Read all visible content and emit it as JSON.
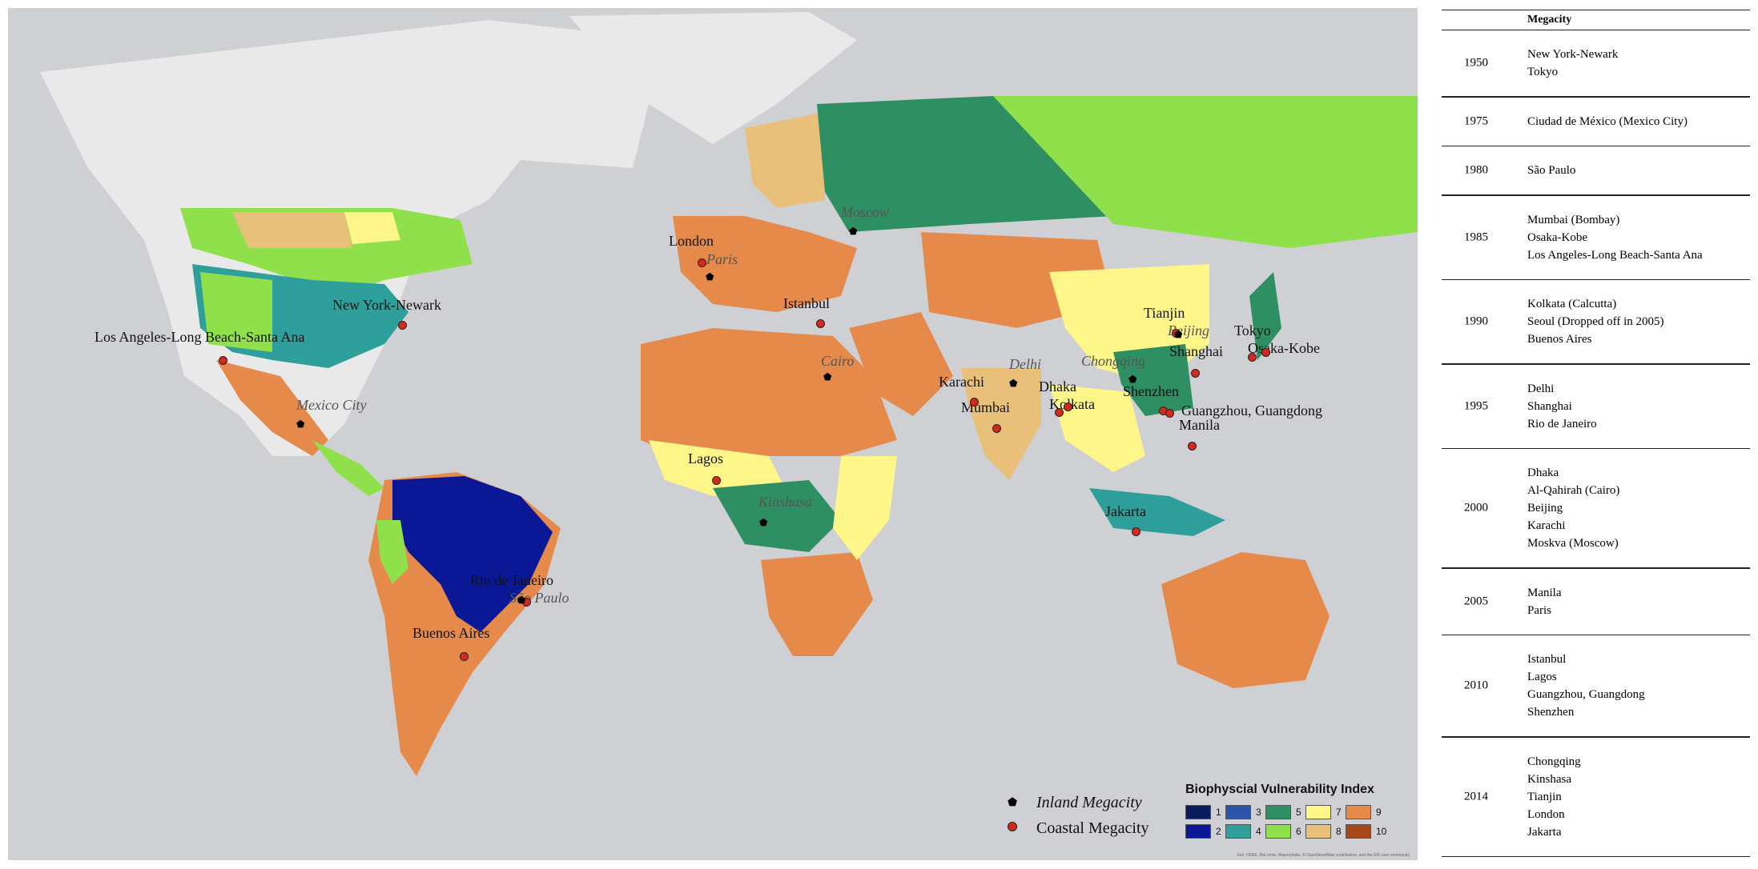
{
  "map": {
    "coastal_cities": [
      "New York-Newark",
      "Los Angeles-Long Beach-Santa Ana",
      "London",
      "Istanbul",
      "Lagos",
      "Karachi",
      "Mumbai",
      "Dhaka",
      "Kolkata",
      "Tianjin",
      "Shanghai",
      "Shenzhen",
      "Guangzhou, Guangdong",
      "Manila",
      "Tokyo",
      "Osaka-Kobe",
      "Jakarta",
      "Rio de Janeiro",
      "Buenos Aires"
    ],
    "inland_cities": [
      "Moscow",
      "Paris",
      "Cairo",
      "Kinshasa",
      "Delhi",
      "Chongqing",
      "Beijing",
      "Mexico City",
      "São Paulo"
    ],
    "legend": {
      "inland_label": "Inland Megacity",
      "coastal_label": "Coastal Megacity",
      "inland_color": "#000000",
      "coastal_color": "#d42a1e"
    },
    "vi_title": "Biophyscial Vulnerability Index",
    "vi_classes": [
      {
        "label": "1",
        "color": "#0b1a5c"
      },
      {
        "label": "2",
        "color": "#0a1896"
      },
      {
        "label": "3",
        "color": "#2b55a8"
      },
      {
        "label": "4",
        "color": "#2e9f9a"
      },
      {
        "label": "5",
        "color": "#2d8f62"
      },
      {
        "label": "6",
        "color": "#8fe04a"
      },
      {
        "label": "7",
        "color": "#fff68a"
      },
      {
        "label": "8",
        "color": "#e8c07a"
      },
      {
        "label": "9",
        "color": "#e58a4b"
      },
      {
        "label": "10",
        "color": "#a8481a"
      }
    ],
    "attribution": "Esri, HERE, DeLorme, MapmyIndia, © OpenStreetMap contributors, and the GIS user community"
  },
  "table": {
    "header": "Megacity",
    "rows": [
      {
        "year": "1950",
        "cities": [
          "New York-Newark",
          "Tokyo"
        ]
      },
      {
        "year": "1975",
        "cities": [
          "Ciudad de México (Mexico City)"
        ]
      },
      {
        "year": "1980",
        "cities": [
          "São Paulo"
        ]
      },
      {
        "year": "1985",
        "cities": [
          "Mumbai (Bombay)",
          "Osaka-Kobe",
          "Los Angeles-Long Beach-Santa Ana"
        ]
      },
      {
        "year": "1990",
        "cities": [
          "Kolkata (Calcutta)",
          "Seoul (Dropped off in 2005)",
          "Buenos Aires"
        ]
      },
      {
        "year": "1995",
        "cities": [
          "Delhi",
          "Shanghai",
          "Rio de Janeiro"
        ]
      },
      {
        "year": "2000",
        "cities": [
          "Dhaka",
          "Al-Qahirah (Cairo)",
          "Beijing",
          "Karachi",
          "Moskva (Moscow)"
        ]
      },
      {
        "year": "2005",
        "cities": [
          "Manila",
          "Paris"
        ]
      },
      {
        "year": "2010",
        "cities": [
          "Istanbul",
          "Lagos",
          "Guangzhou, Guangdong",
          "Shenzhen"
        ]
      },
      {
        "year": "2014",
        "cities": [
          "Chongqing",
          "Kinshasa",
          "Tianjin",
          "London",
          "Jakarta"
        ]
      }
    ]
  }
}
